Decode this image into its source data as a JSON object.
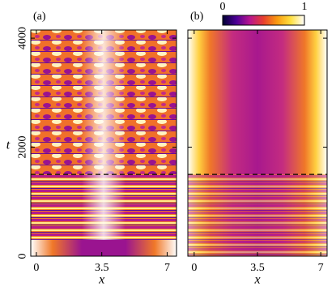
{
  "chart_data": [
    {
      "type": "heatmap",
      "panel_label": "(a)",
      "x_label": "x",
      "y_label": "t",
      "xlim": [
        -0.3,
        7.5
      ],
      "xticks": [
        0,
        3.5,
        7
      ],
      "ylim": [
        0,
        4150
      ],
      "yticks": [
        0,
        2000,
        4000
      ],
      "ytick_labels": true,
      "hline": 1500
    },
    {
      "type": "heatmap",
      "panel_label": "(b)",
      "x_label": "x",
      "xlim": [
        -0.35,
        7.35
      ],
      "xticks": [
        0,
        3.5,
        7
      ],
      "ylim": [
        0,
        4150
      ],
      "yticks": [
        0,
        2000,
        4000
      ],
      "ytick_labels": false,
      "hline": 1500,
      "colorbar": {
        "range": [
          0,
          1
        ],
        "ticks": [
          0,
          1
        ],
        "colors": [
          "#000033",
          "#4b0096",
          "#b8168f",
          "#e8402e",
          "#f99a10",
          "#ffe040",
          "#ffffff"
        ]
      }
    }
  ]
}
